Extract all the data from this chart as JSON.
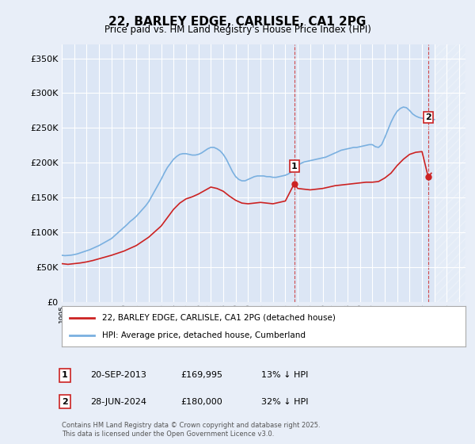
{
  "title": "22, BARLEY EDGE, CARLISLE, CA1 2PG",
  "subtitle": "Price paid vs. HM Land Registry's House Price Index (HPI)",
  "ylabel_ticks": [
    "£0",
    "£50K",
    "£100K",
    "£150K",
    "£200K",
    "£250K",
    "£300K",
    "£350K"
  ],
  "ytick_values": [
    0,
    50000,
    100000,
    150000,
    200000,
    250000,
    300000,
    350000
  ],
  "ylim": [
    0,
    370000
  ],
  "xlim_start": 1995.0,
  "xlim_end": 2027.5,
  "bg_color": "#e8eef8",
  "plot_bg_color": "#dce6f5",
  "grid_color": "#ffffff",
  "hpi_color": "#7ab0e0",
  "price_color": "#cc2222",
  "vline1_x": 2013.72,
  "vline2_x": 2024.49,
  "marker1_y": 169995,
  "marker2_y": 180000,
  "marker1_hpi_y": 195000,
  "marker2_hpi_y": 265000,
  "legend_label_red": "22, BARLEY EDGE, CARLISLE, CA1 2PG (detached house)",
  "legend_label_blue": "HPI: Average price, detached house, Cumberland",
  "table_rows": [
    [
      "1",
      "20-SEP-2013",
      "£169,995",
      "13% ↓ HPI"
    ],
    [
      "2",
      "28-JUN-2024",
      "£180,000",
      "32% ↓ HPI"
    ]
  ],
  "footnote": "Contains HM Land Registry data © Crown copyright and database right 2025.\nThis data is licensed under the Open Government Licence v3.0.",
  "hpi_line": {
    "years": [
      1995.0,
      1995.25,
      1995.5,
      1995.75,
      1996.0,
      1996.25,
      1996.5,
      1996.75,
      1997.0,
      1997.25,
      1997.5,
      1997.75,
      1998.0,
      1998.25,
      1998.5,
      1998.75,
      1999.0,
      1999.25,
      1999.5,
      1999.75,
      2000.0,
      2000.25,
      2000.5,
      2000.75,
      2001.0,
      2001.25,
      2001.5,
      2001.75,
      2002.0,
      2002.25,
      2002.5,
      2002.75,
      2003.0,
      2003.25,
      2003.5,
      2003.75,
      2004.0,
      2004.25,
      2004.5,
      2004.75,
      2005.0,
      2005.25,
      2005.5,
      2005.75,
      2006.0,
      2006.25,
      2006.5,
      2006.75,
      2007.0,
      2007.25,
      2007.5,
      2007.75,
      2008.0,
      2008.25,
      2008.5,
      2008.75,
      2009.0,
      2009.25,
      2009.5,
      2009.75,
      2010.0,
      2010.25,
      2010.5,
      2010.75,
      2011.0,
      2011.25,
      2011.5,
      2011.75,
      2012.0,
      2012.25,
      2012.5,
      2012.75,
      2013.0,
      2013.25,
      2013.5,
      2013.75,
      2014.0,
      2014.25,
      2014.5,
      2014.75,
      2015.0,
      2015.25,
      2015.5,
      2015.75,
      2016.0,
      2016.25,
      2016.5,
      2016.75,
      2017.0,
      2017.25,
      2017.5,
      2017.75,
      2018.0,
      2018.25,
      2018.5,
      2018.75,
      2019.0,
      2019.25,
      2019.5,
      2019.75,
      2020.0,
      2020.25,
      2020.5,
      2020.75,
      2021.0,
      2021.25,
      2021.5,
      2021.75,
      2022.0,
      2022.25,
      2022.5,
      2022.75,
      2023.0,
      2023.25,
      2023.5,
      2023.75,
      2024.0,
      2024.25,
      2024.5,
      2024.75,
      2025.0
    ],
    "values": [
      67000,
      66500,
      66800,
      67200,
      68000,
      69000,
      70500,
      72000,
      73500,
      75000,
      77000,
      79000,
      81000,
      83500,
      86000,
      88500,
      91000,
      95000,
      99000,
      103000,
      107000,
      111000,
      115500,
      119000,
      123000,
      128000,
      133000,
      138000,
      144000,
      152000,
      160000,
      168000,
      176000,
      185000,
      193000,
      199000,
      205000,
      209000,
      212000,
      213000,
      213000,
      212000,
      211000,
      211000,
      212000,
      214000,
      217000,
      220000,
      222000,
      222000,
      220000,
      217000,
      212000,
      205000,
      196000,
      187000,
      180000,
      176000,
      174000,
      174000,
      176000,
      178000,
      180000,
      181000,
      181000,
      181000,
      180000,
      180000,
      179000,
      179000,
      180000,
      181000,
      182000,
      184000,
      187000,
      192000,
      196000,
      199000,
      201000,
      202000,
      203000,
      204000,
      205000,
      206000,
      207000,
      208000,
      210000,
      212000,
      214000,
      216000,
      218000,
      219000,
      220000,
      221000,
      222000,
      222000,
      223000,
      224000,
      225000,
      226000,
      226000,
      223000,
      222000,
      226000,
      236000,
      247000,
      258000,
      267000,
      274000,
      278000,
      280000,
      279000,
      275000,
      270000,
      267000,
      265000,
      264000,
      263000,
      262000,
      262000,
      262000
    ]
  },
  "price_line": {
    "years": [
      1995.0,
      1995.5,
      1996.0,
      1996.5,
      1997.0,
      1997.5,
      1998.0,
      1998.5,
      1999.0,
      1999.5,
      2000.0,
      2000.5,
      2001.0,
      2001.5,
      2002.0,
      2002.5,
      2003.0,
      2003.5,
      2004.0,
      2004.5,
      2005.0,
      2005.5,
      2006.0,
      2006.5,
      2007.0,
      2007.5,
      2008.0,
      2008.5,
      2009.0,
      2009.5,
      2010.0,
      2010.5,
      2011.0,
      2011.5,
      2012.0,
      2012.5,
      2013.0,
      2013.72,
      2014.0,
      2014.5,
      2015.0,
      2015.5,
      2016.0,
      2016.5,
      2017.0,
      2017.5,
      2018.0,
      2018.5,
      2019.0,
      2019.5,
      2020.0,
      2020.5,
      2021.0,
      2021.5,
      2022.0,
      2022.5,
      2023.0,
      2023.5,
      2024.0,
      2024.49,
      2024.75
    ],
    "values": [
      55000,
      54000,
      55000,
      56000,
      57500,
      59500,
      62000,
      64500,
      67000,
      70000,
      73000,
      77000,
      81000,
      87000,
      93000,
      101000,
      109000,
      121000,
      133000,
      142000,
      148000,
      151000,
      155000,
      160000,
      165000,
      163000,
      159000,
      152000,
      146000,
      142000,
      141000,
      142000,
      143000,
      142000,
      141000,
      143000,
      145000,
      169995,
      163000,
      162000,
      161000,
      162000,
      163000,
      165000,
      167000,
      168000,
      169000,
      170000,
      171000,
      172000,
      172000,
      173000,
      178000,
      185000,
      196000,
      205000,
      212000,
      215000,
      216000,
      180000,
      185000
    ]
  }
}
